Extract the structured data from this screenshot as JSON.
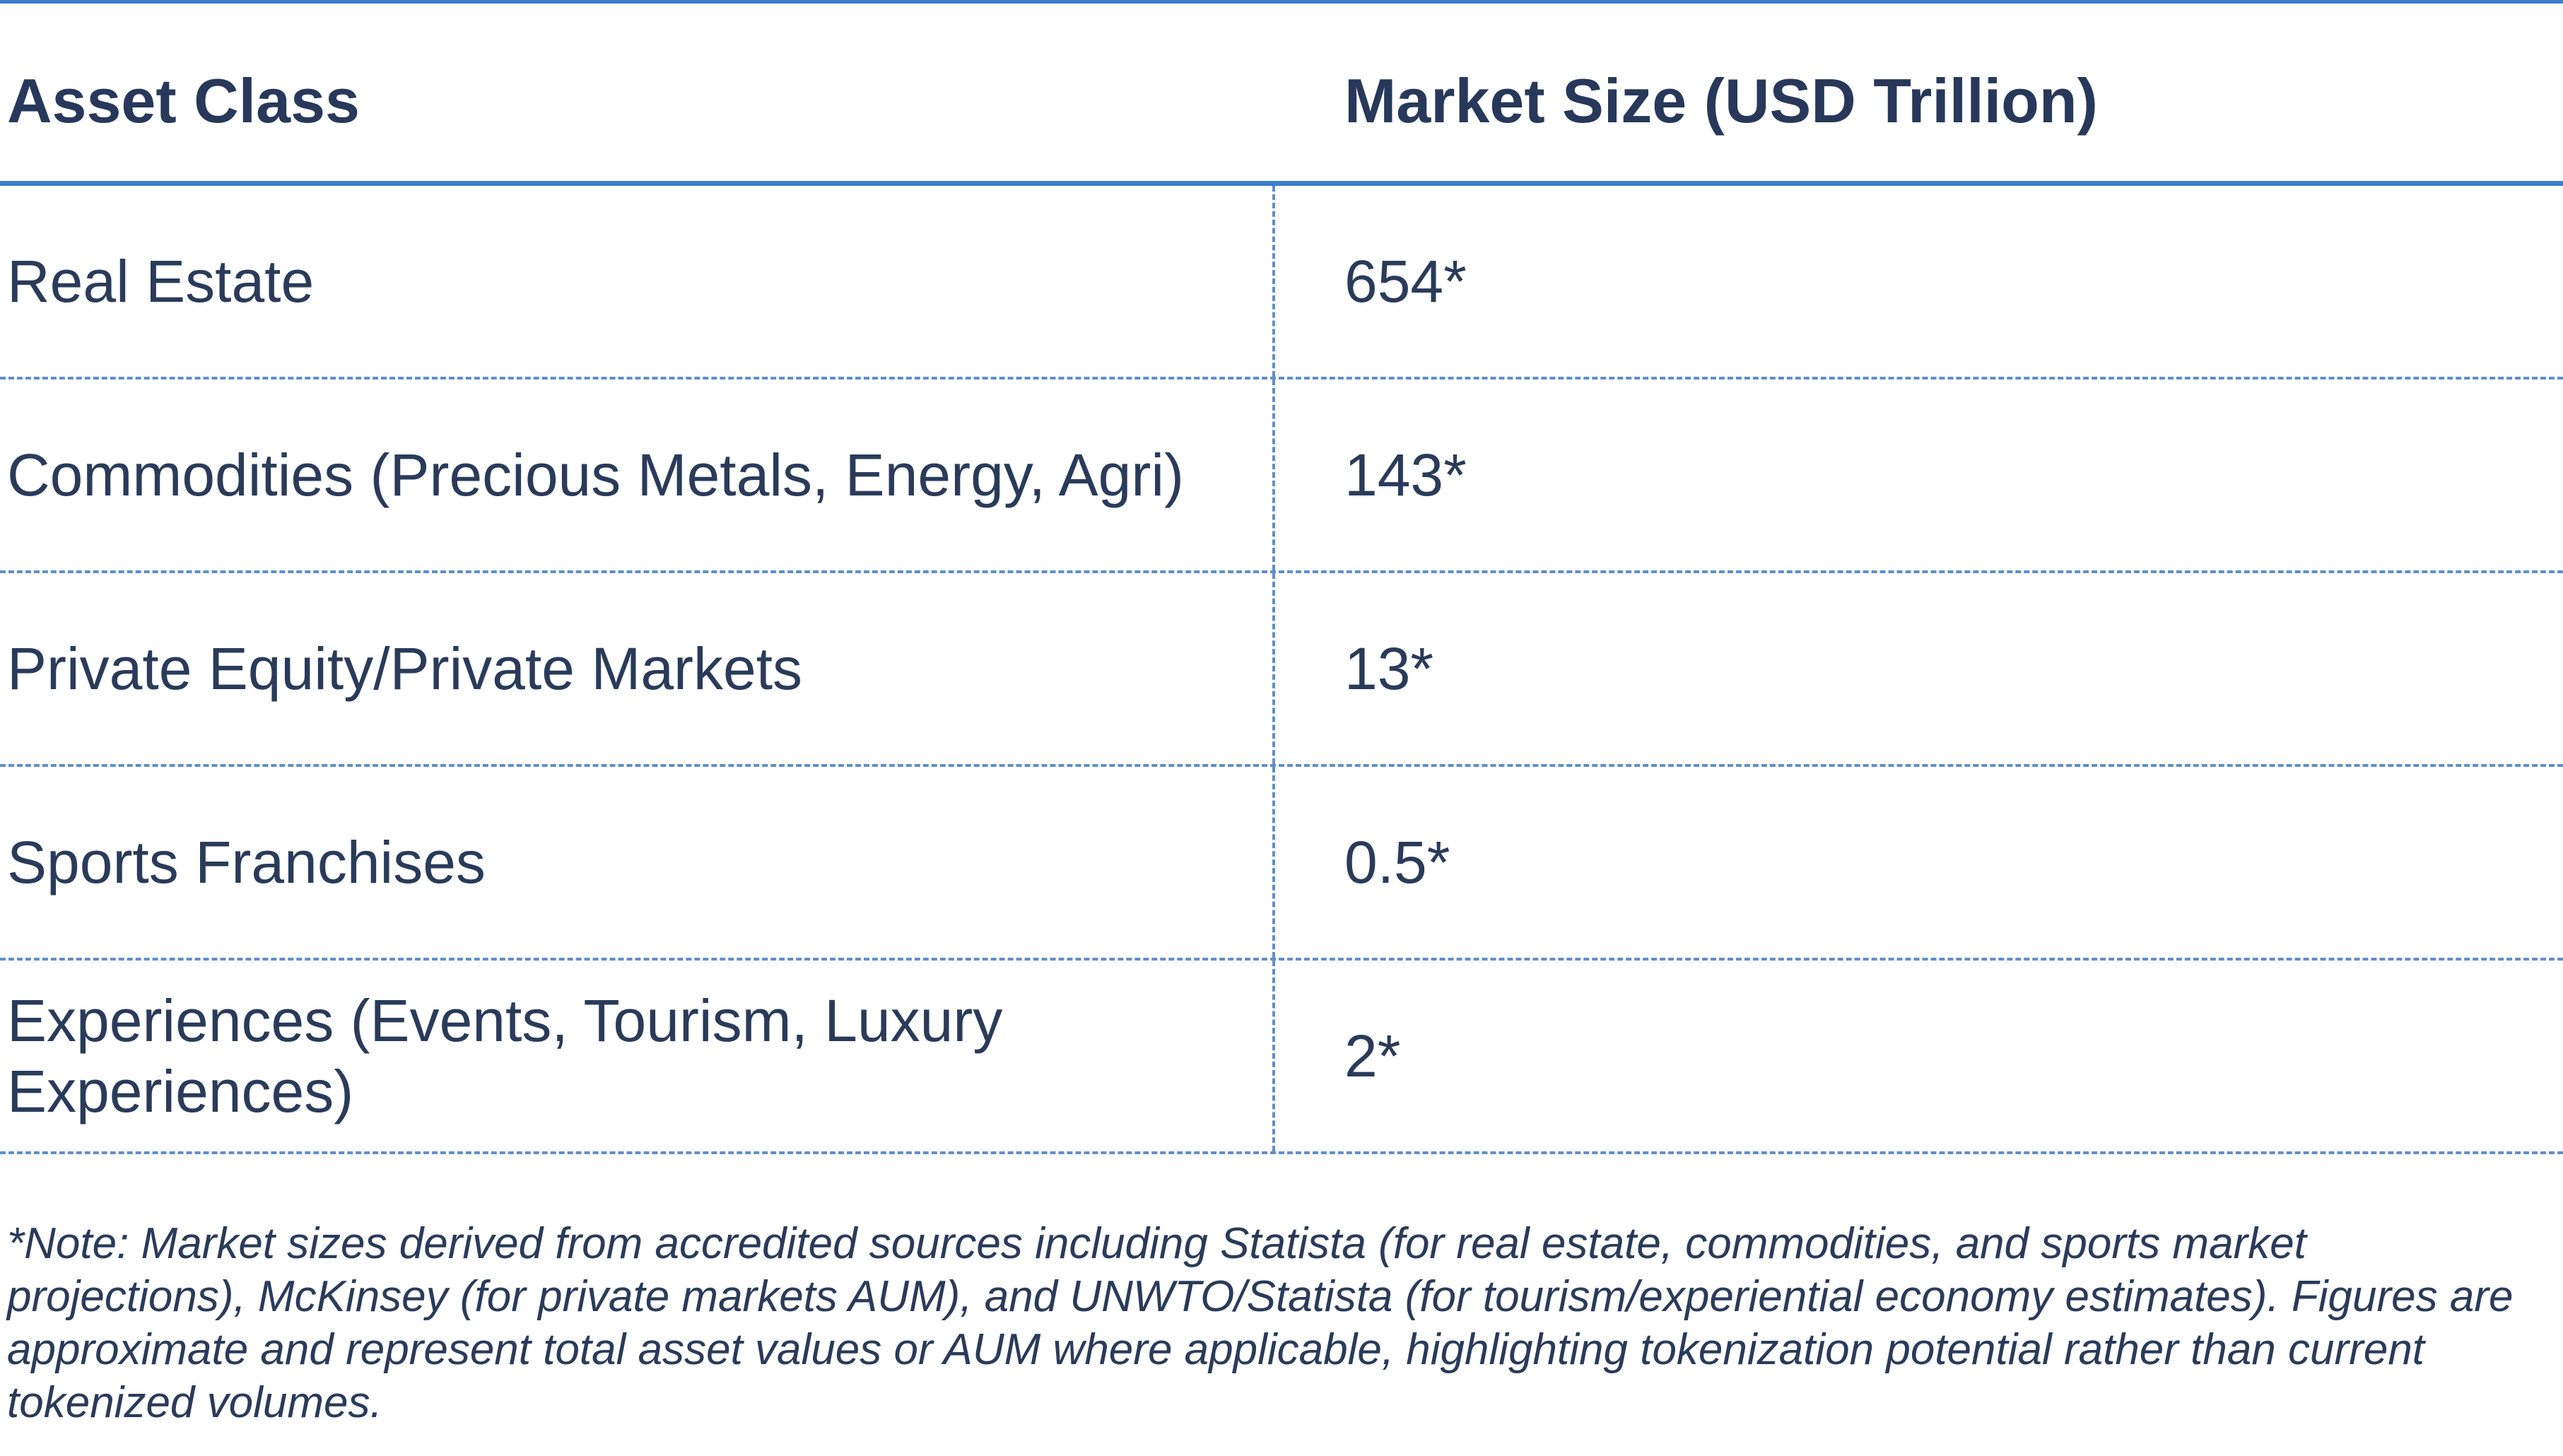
{
  "table": {
    "headers": {
      "asset_class": "Asset Class",
      "market_size": "Market Size (USD Trillion)"
    },
    "rows": [
      {
        "asset": "Real Estate",
        "value": "654*"
      },
      {
        "asset": "Commodities (Precious Metals, Energy, Agri)",
        "value": "143*"
      },
      {
        "asset": "Private Equity/Private Markets",
        "value": "13*"
      },
      {
        "asset": "Sports Franchises",
        "value": "0.5*"
      },
      {
        "asset": "Experiences (Events, Tourism, Luxury Experiences)",
        "value": "2*"
      }
    ]
  },
  "note": "*Note: Market sizes derived from accredited sources including Statista (for real estate, commodities, and sports market projections), McKinsey (for private markets AUM), and UNWTO/Statista (for tourism/experiential economy estimates). Figures are approximate and represent total asset values or AUM where applicable, highlighting tokenization potential rather than current tokenized volumes.",
  "colors": {
    "rule": "#3b7dd0",
    "dashed": "#5f8fc9",
    "text": "#2a3b5a"
  }
}
